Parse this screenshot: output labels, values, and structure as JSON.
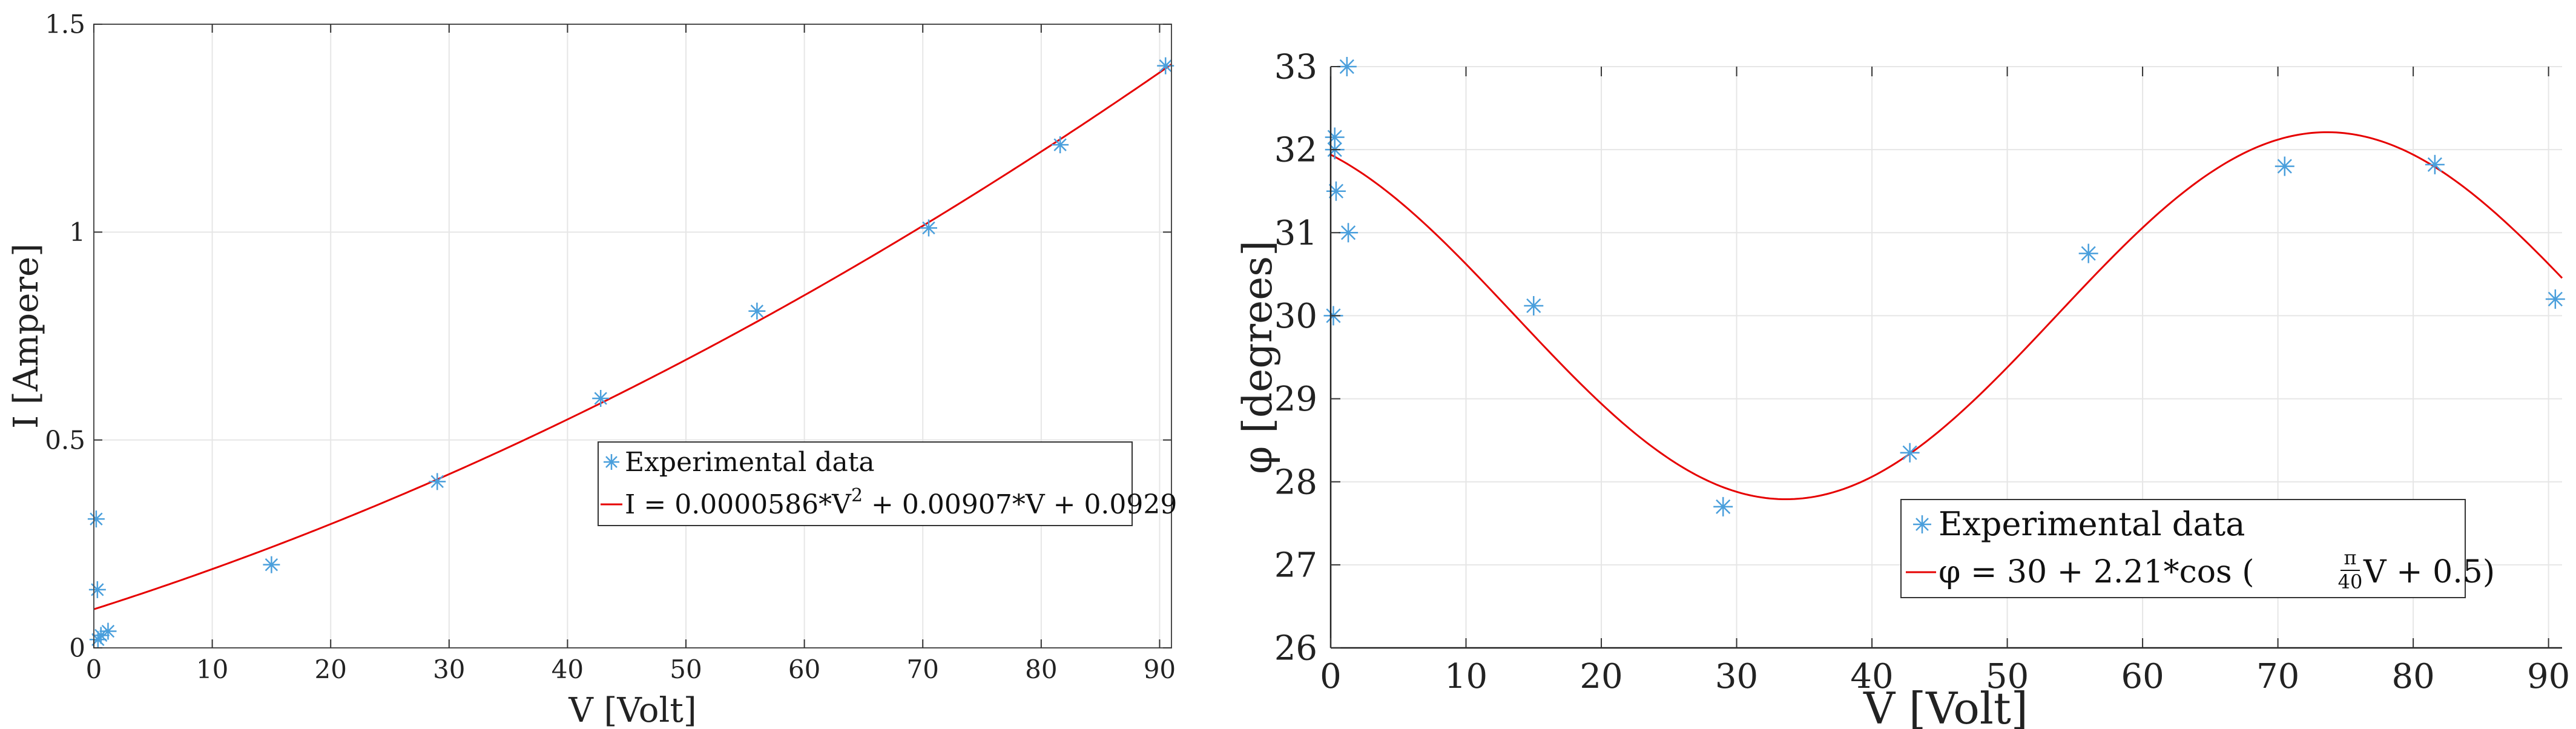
{
  "chart_data": [
    {
      "type": "scatter",
      "xlabel": "V [Volt]",
      "ylabel": "I [Ampere]",
      "xlim": [
        0,
        91
      ],
      "ylim": [
        0,
        1.5
      ],
      "xticks": [
        "0",
        "10",
        "20",
        "30",
        "40",
        "50",
        "60",
        "70",
        "80",
        "90"
      ],
      "yticks": [
        "0",
        "0.5",
        "1",
        "1.5"
      ],
      "grid": true,
      "series": [
        {
          "name": "Experimental data",
          "x": [
            0.2,
            0.3,
            0.35,
            0.6,
            1.2,
            15,
            29,
            42.8,
            56,
            70.5,
            81.6,
            90.5
          ],
          "y": [
            0.31,
            0.14,
            0.02,
            0.03,
            0.04,
            0.2,
            0.4,
            0.6,
            0.81,
            1.01,
            1.21,
            1.4
          ]
        },
        {
          "name": "I = 0.0000586*V^2 + 0.00907*V + 0.0929",
          "coefficients": [
            5.86e-05,
            0.00907,
            0.0929
          ]
        }
      ],
      "legend": {
        "placement": "center-right",
        "entries": [
          "Experimental data",
          "I = 0.0000586*V",
          "2",
          " + 0.00907*V + 0.0929"
        ]
      },
      "colors": {
        "data": "#4a9fdc",
        "fit": "#e60000"
      }
    },
    {
      "type": "scatter",
      "xlabel": "V [Volt]",
      "ylabel": "φ [degrees]",
      "xlim": [
        0,
        91
      ],
      "ylim": [
        26,
        33
      ],
      "xticks": [
        "0",
        "10",
        "20",
        "30",
        "40",
        "50",
        "60",
        "70",
        "80",
        "90"
      ],
      "yticks": [
        "26",
        "27",
        "28",
        "29",
        "30",
        "31",
        "32",
        "33"
      ],
      "grid": true,
      "series": [
        {
          "name": "Experimental data",
          "x": [
            0.2,
            0.3,
            0.3,
            0.4,
            1.2,
            1.3,
            15,
            29,
            42.8,
            56,
            70.5,
            81.6,
            90.5
          ],
          "y": [
            30,
            32,
            32.15,
            31.5,
            33,
            31,
            30.12,
            27.7,
            28.35,
            30.75,
            31.8,
            31.82,
            30.2
          ]
        },
        {
          "name": "φ = 30 + 2.21*cos(πV/40 + 0.5)",
          "amplitude": 2.21,
          "offset": 30,
          "phase": 0.5
        }
      ],
      "legend": {
        "placement": "bottom-right",
        "entries": [
          "Experimental data",
          "φ = 30 + 2.21*cos (",
          "π",
          "40",
          "V + 0.5)"
        ]
      },
      "colors": {
        "data": "#4a9fdc",
        "fit": "#e60000"
      }
    }
  ]
}
